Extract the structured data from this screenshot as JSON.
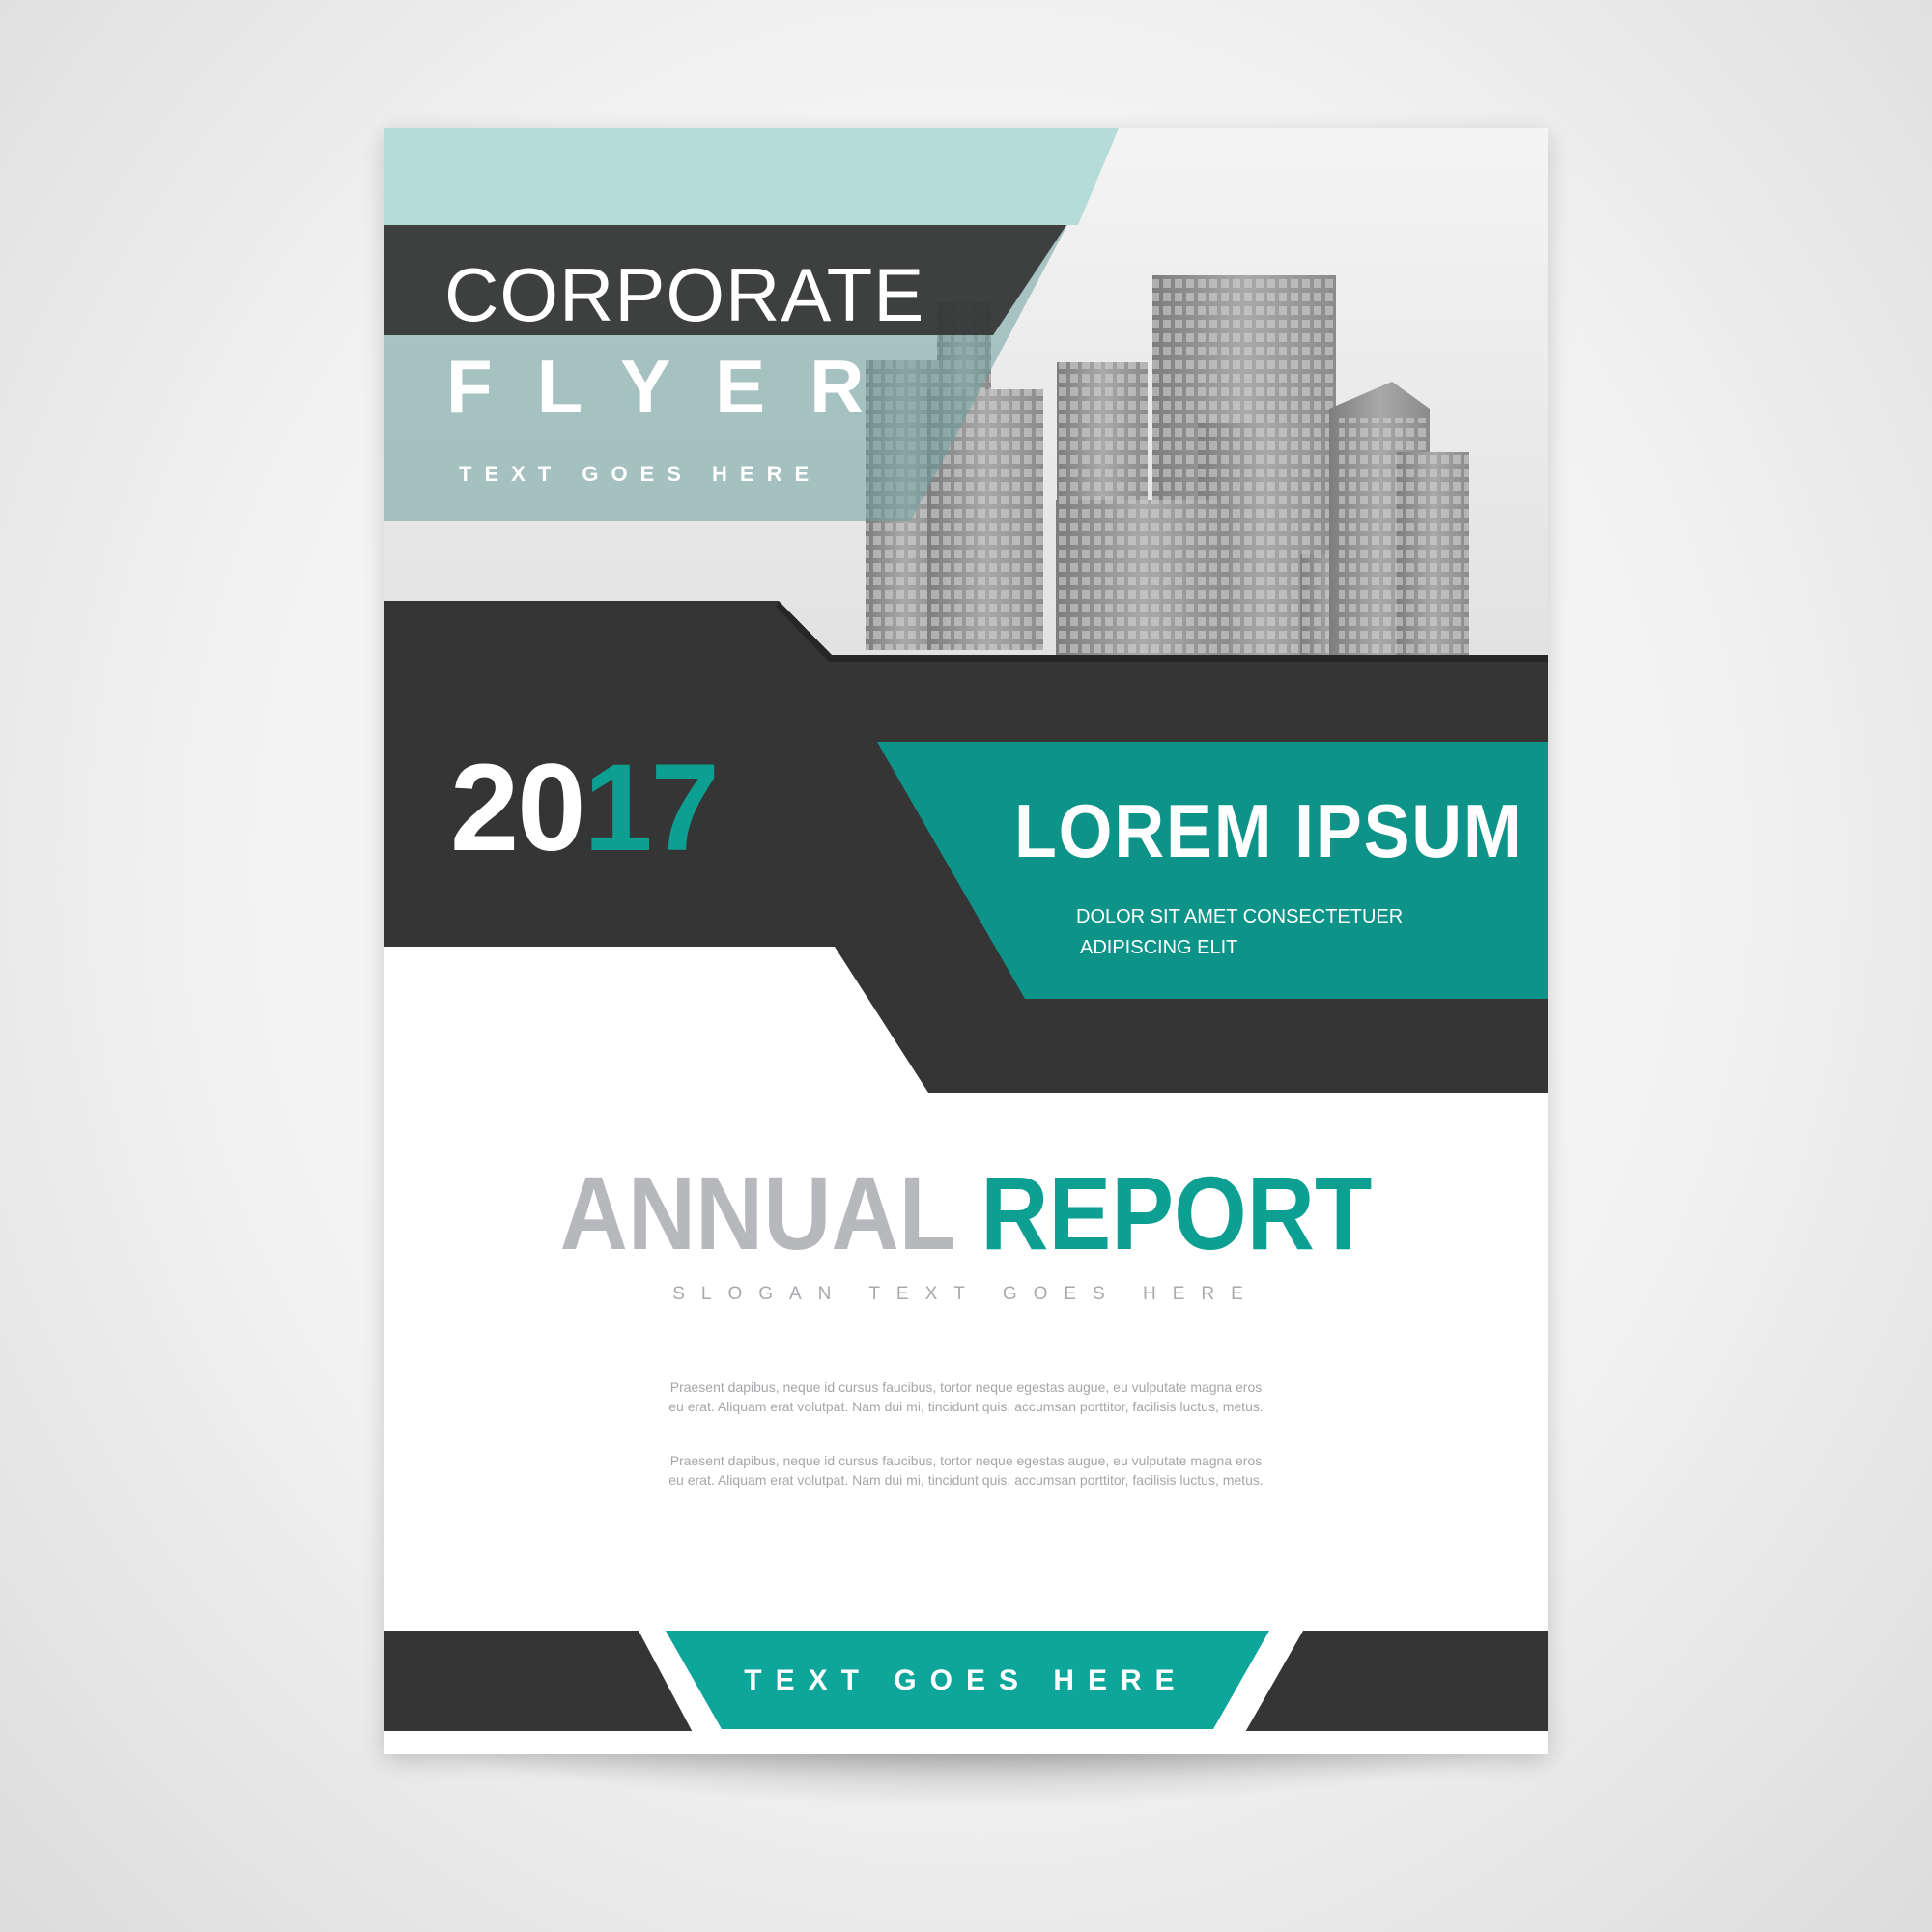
{
  "flyer": {
    "title_line1": "CORPORATE",
    "title_line2": "FLYER",
    "top_tagline": "TEXT GOES HERE",
    "year_part1": "20",
    "year_part2": "17",
    "headline": "LOREM IPSUM",
    "subheadline_line1": "DOLOR SIT AMET CONSECTETUER",
    "subheadline_line2": "ADIPISCING ELIT",
    "report_word1": "ANNUAL",
    "report_word2": "REPORT",
    "slogan": "SLOGAN TEXT GOES HERE",
    "paragraph1": {
      "line1": "Praesent dapibus, neque id cursus faucibus, tortor neque egestas augue, eu vulputate magna eros",
      "line2": "eu erat. Aliquam erat volutpat. Nam dui mi, tincidunt quis, accumsan porttitor, facilisis luctus, metus."
    },
    "paragraph2": {
      "line1": "Praesent dapibus, neque id cursus faucibus, tortor neque egestas augue, eu vulputate magna eros",
      "line2": "eu erat. Aliquam erat volutpat. Nam dui mi, tincidunt quis, accumsan porttitor, facilisis luctus, metus."
    },
    "bottom_tagline": "TEXT GOES HERE"
  },
  "colors": {
    "teal": "#0e9f93",
    "teal_light": "#b6dcda",
    "dark": "#353535",
    "grey_text": "#b7b8bb"
  }
}
